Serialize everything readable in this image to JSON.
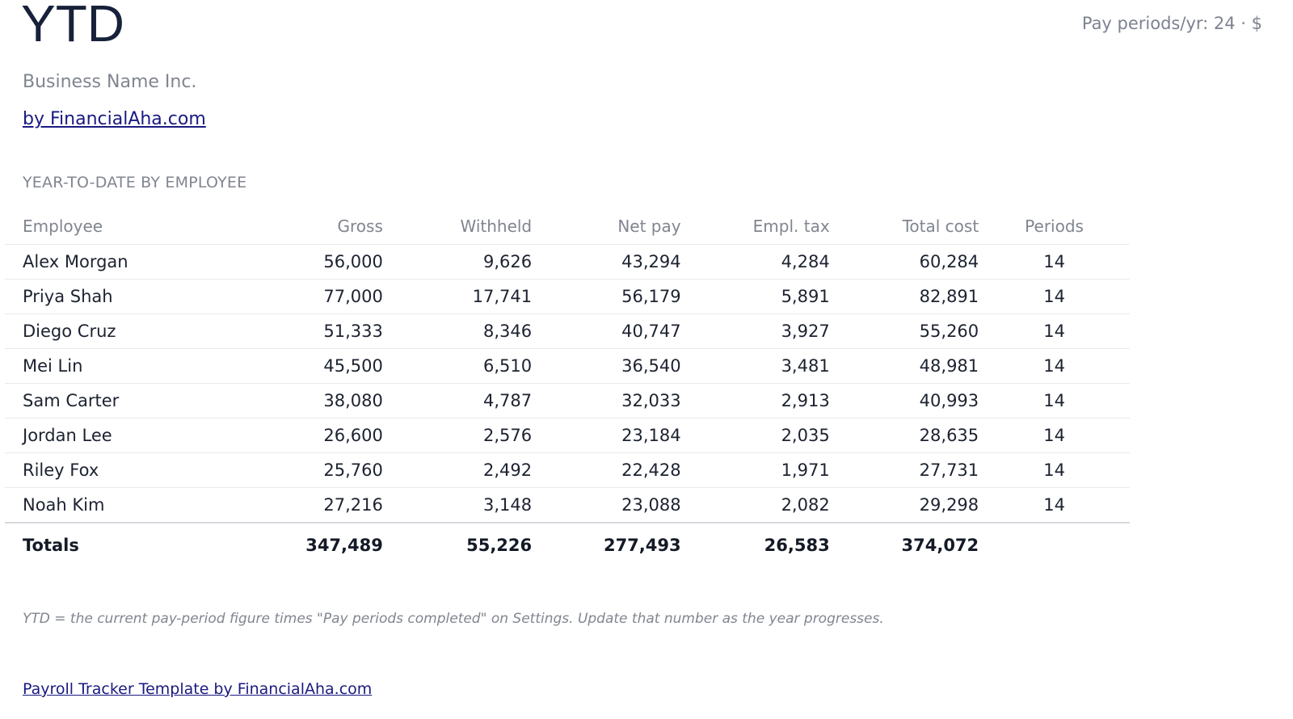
{
  "header": {
    "title": "YTD",
    "meta": "Pay periods/yr: 24 · $",
    "business_name": "Business Name Inc.",
    "byline": "by FinancialAha.com"
  },
  "section": {
    "label": "YEAR-TO-DATE BY EMPLOYEE"
  },
  "table": {
    "columns": {
      "employee": "Employee",
      "gross": "Gross",
      "withheld": "Withheld",
      "net_pay": "Net pay",
      "empl_tax": "Empl. tax",
      "total_cost": "Total cost",
      "periods": "Periods"
    },
    "rows": [
      {
        "employee": "Alex Morgan",
        "gross": "56,000",
        "withheld": "9,626",
        "net_pay": "43,294",
        "empl_tax": "4,284",
        "total_cost": "60,284",
        "periods": "14"
      },
      {
        "employee": "Priya Shah",
        "gross": "77,000",
        "withheld": "17,741",
        "net_pay": "56,179",
        "empl_tax": "5,891",
        "total_cost": "82,891",
        "periods": "14"
      },
      {
        "employee": "Diego Cruz",
        "gross": "51,333",
        "withheld": "8,346",
        "net_pay": "40,747",
        "empl_tax": "3,927",
        "total_cost": "55,260",
        "periods": "14"
      },
      {
        "employee": "Mei Lin",
        "gross": "45,500",
        "withheld": "6,510",
        "net_pay": "36,540",
        "empl_tax": "3,481",
        "total_cost": "48,981",
        "periods": "14"
      },
      {
        "employee": "Sam Carter",
        "gross": "38,080",
        "withheld": "4,787",
        "net_pay": "32,033",
        "empl_tax": "2,913",
        "total_cost": "40,993",
        "periods": "14"
      },
      {
        "employee": "Jordan Lee",
        "gross": "26,600",
        "withheld": "2,576",
        "net_pay": "23,184",
        "empl_tax": "2,035",
        "total_cost": "28,635",
        "periods": "14"
      },
      {
        "employee": "Riley Fox",
        "gross": "25,760",
        "withheld": "2,492",
        "net_pay": "22,428",
        "empl_tax": "1,971",
        "total_cost": "27,731",
        "periods": "14"
      },
      {
        "employee": "Noah Kim",
        "gross": "27,216",
        "withheld": "3,148",
        "net_pay": "23,088",
        "empl_tax": "2,082",
        "total_cost": "29,298",
        "periods": "14"
      }
    ],
    "totals": {
      "label": "Totals",
      "gross": "347,489",
      "withheld": "55,226",
      "net_pay": "277,493",
      "empl_tax": "26,583",
      "total_cost": "374,072"
    }
  },
  "note": "YTD = the current pay-period figure times \"Pay periods completed\" on Settings. Update that number as the year progresses.",
  "footer": {
    "link_text": "Payroll Tracker Template by FinancialAha.com"
  }
}
